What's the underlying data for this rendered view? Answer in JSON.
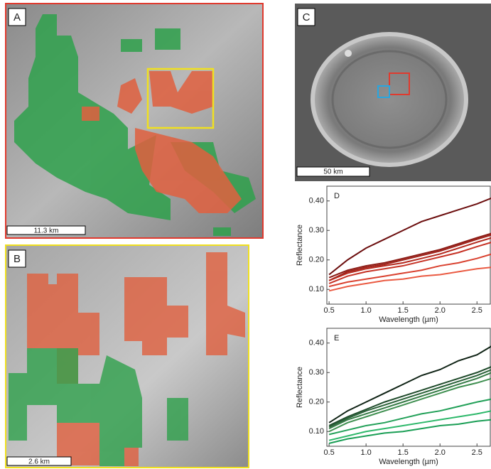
{
  "panels": [
    {
      "label": "A",
      "scale_bar": "11.3 km"
    },
    {
      "label": "B",
      "scale_bar": "2.6 km"
    },
    {
      "label": "C",
      "scale_bar": "50 km"
    }
  ],
  "chart_data": [
    {
      "type": "line",
      "panel_label": "D",
      "y_label": "Reflectance",
      "x_label": "Wavelength (µm)",
      "x": [
        0.5,
        0.75,
        1.0,
        1.25,
        1.5,
        1.75,
        2.0,
        2.25,
        2.5,
        2.7
      ],
      "xlim": [
        0.47,
        2.68
      ],
      "ylim": [
        0.05,
        0.45
      ],
      "xticks": [
        0.5,
        {
          "value": 1,
          "label": "1.0"
        },
        1.5,
        {
          "value": 2,
          "label": "2.0"
        },
        2.5
      ],
      "yticks": [
        {
          "value": 0.1,
          "label": "0.10"
        },
        {
          "value": 0.2,
          "label": "0.20"
        },
        {
          "value": 0.3,
          "label": "0.30"
        },
        {
          "value": 0.4,
          "label": "0.40"
        }
      ],
      "series": [
        {
          "color": "#6b0d0d",
          "values": [
            0.15,
            0.2,
            0.24,
            0.27,
            0.3,
            0.33,
            0.35,
            0.37,
            0.39,
            0.41
          ]
        },
        {
          "color": "#8a1a14",
          "values": [
            0.14,
            0.165,
            0.18,
            0.19,
            0.205,
            0.22,
            0.235,
            0.255,
            0.275,
            0.29
          ]
        },
        {
          "color": "#9e2018",
          "values": [
            0.13,
            0.16,
            0.175,
            0.185,
            0.2,
            0.215,
            0.23,
            0.25,
            0.27,
            0.285
          ]
        },
        {
          "color": "#b3281d",
          "values": [
            0.13,
            0.155,
            0.17,
            0.18,
            0.19,
            0.205,
            0.22,
            0.24,
            0.26,
            0.275
          ]
        },
        {
          "color": "#c63225",
          "values": [
            0.12,
            0.145,
            0.16,
            0.17,
            0.18,
            0.195,
            0.21,
            0.225,
            0.245,
            0.26
          ]
        },
        {
          "color": "#d9412f",
          "values": [
            0.11,
            0.125,
            0.135,
            0.145,
            0.155,
            0.165,
            0.18,
            0.19,
            0.205,
            0.22
          ]
        },
        {
          "color": "#ea5a42",
          "values": [
            0.095,
            0.11,
            0.12,
            0.13,
            0.135,
            0.145,
            0.15,
            0.16,
            0.17,
            0.175
          ]
        }
      ]
    },
    {
      "type": "line",
      "panel_label": "E",
      "y_label": "Reflectance",
      "x_label": "Wavelength (µm)",
      "x": [
        0.5,
        0.75,
        1.0,
        1.25,
        1.5,
        1.75,
        2.0,
        2.25,
        2.5,
        2.7
      ],
      "xlim": [
        0.47,
        2.68
      ],
      "ylim": [
        0.05,
        0.45
      ],
      "xticks": [
        0.5,
        {
          "value": 1,
          "label": "1.0"
        },
        1.5,
        {
          "value": 2,
          "label": "2.0"
        },
        2.5
      ],
      "yticks": [
        {
          "value": 0.1,
          "label": "0.10"
        },
        {
          "value": 0.2,
          "label": "0.20"
        },
        {
          "value": 0.3,
          "label": "0.30"
        },
        {
          "value": 0.4,
          "label": "0.40"
        }
      ],
      "series": [
        {
          "color": "#0e2214",
          "values": [
            0.13,
            0.17,
            0.2,
            0.23,
            0.26,
            0.29,
            0.31,
            0.34,
            0.36,
            0.39
          ]
        },
        {
          "color": "#1e4a2a",
          "values": [
            0.12,
            0.15,
            0.175,
            0.2,
            0.22,
            0.24,
            0.26,
            0.28,
            0.3,
            0.32
          ]
        },
        {
          "color": "#2a6138",
          "values": [
            0.115,
            0.145,
            0.17,
            0.19,
            0.21,
            0.23,
            0.25,
            0.27,
            0.29,
            0.31
          ]
        },
        {
          "color": "#357a45",
          "values": [
            0.11,
            0.14,
            0.16,
            0.18,
            0.2,
            0.22,
            0.24,
            0.26,
            0.28,
            0.3
          ]
        },
        {
          "color": "#3f8f50",
          "values": [
            0.1,
            0.13,
            0.15,
            0.17,
            0.19,
            0.21,
            0.23,
            0.25,
            0.265,
            0.28
          ]
        },
        {
          "color": "#22a058",
          "values": [
            0.09,
            0.105,
            0.12,
            0.13,
            0.145,
            0.16,
            0.17,
            0.185,
            0.2,
            0.21
          ]
        },
        {
          "color": "#2db86a",
          "values": [
            0.07,
            0.085,
            0.1,
            0.11,
            0.12,
            0.13,
            0.14,
            0.15,
            0.16,
            0.17
          ]
        },
        {
          "color": "#1a9e55",
          "values": [
            0.06,
            0.075,
            0.085,
            0.095,
            0.1,
            0.11,
            0.12,
            0.125,
            0.135,
            0.14
          ]
        }
      ]
    }
  ]
}
